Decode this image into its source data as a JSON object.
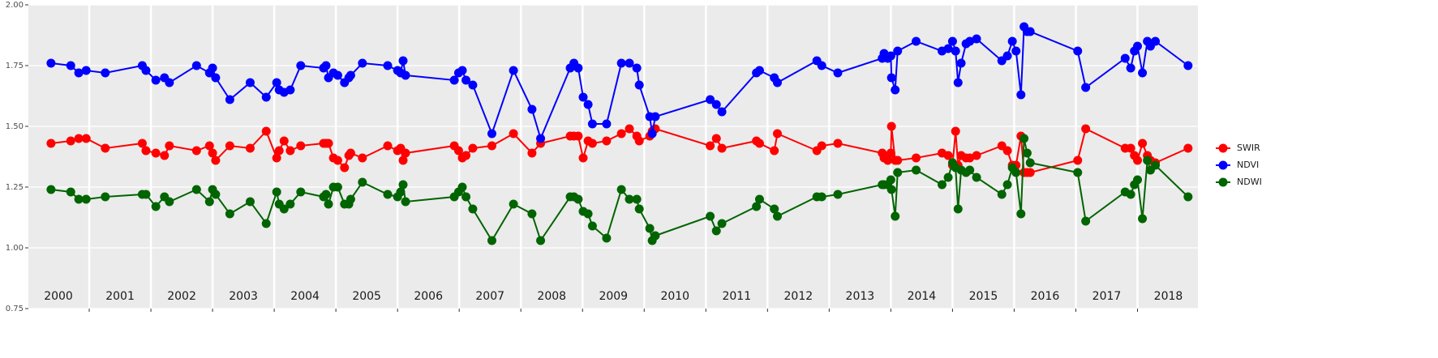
{
  "chart_data": {
    "type": "line",
    "x": [
      2000.38,
      2000.7,
      2000.83,
      2000.95,
      2001.26,
      2001.86,
      2001.92,
      2002.08,
      2002.22,
      2002.3,
      2002.74,
      2002.95,
      2003.0,
      2003.05,
      2003.28,
      2003.61,
      2003.87,
      2004.04,
      2004.08,
      2004.16,
      2004.26,
      2004.43,
      2004.8,
      2004.84,
      2004.88,
      2004.96,
      2005.03,
      2005.14,
      2005.21,
      2005.24,
      2005.43,
      2005.84,
      2006.0,
      2006.05,
      2006.09,
      2006.13,
      2006.92,
      2006.99,
      2007.05,
      2007.11,
      2007.22,
      2007.53,
      2007.88,
      2008.18,
      2008.32,
      2008.8,
      2008.86,
      2008.93,
      2009.01,
      2009.09,
      2009.16,
      2009.39,
      2009.63,
      2009.76,
      2009.88,
      2009.92,
      2010.09,
      2010.13,
      2010.18,
      2011.07,
      2011.17,
      2011.26,
      2011.82,
      2011.87,
      2012.11,
      2012.16,
      2012.8,
      2012.88,
      2013.14,
      2013.86,
      2013.89,
      2013.95,
      2014.0,
      2014.01,
      2014.07,
      2014.11,
      2014.41,
      2014.83,
      2014.93,
      2015.0,
      2015.05,
      2015.09,
      2015.14,
      2015.22,
      2015.28,
      2015.39,
      2015.8,
      2015.89,
      2015.97,
      2016.03,
      2016.11,
      2016.16,
      2016.21,
      2016.26,
      2017.03,
      2017.16,
      2017.8,
      2017.89,
      2017.95,
      2018.0,
      2018.08,
      2018.16,
      2018.21,
      2018.29,
      2018.82
    ],
    "series": [
      {
        "name": "SWIR",
        "color": "#ff0000",
        "values": [
          1.43,
          1.44,
          1.45,
          1.45,
          1.41,
          1.43,
          1.4,
          1.39,
          1.38,
          1.42,
          1.4,
          1.42,
          1.39,
          1.36,
          1.42,
          1.41,
          1.48,
          1.37,
          1.4,
          1.44,
          1.4,
          1.42,
          1.43,
          1.43,
          1.43,
          1.37,
          1.36,
          1.33,
          1.38,
          1.39,
          1.37,
          1.42,
          1.4,
          1.41,
          1.36,
          1.39,
          1.42,
          1.4,
          1.37,
          1.38,
          1.41,
          1.42,
          1.47,
          1.39,
          1.43,
          1.46,
          1.46,
          1.46,
          1.37,
          1.44,
          1.43,
          1.44,
          1.47,
          1.49,
          1.46,
          1.44,
          1.46,
          1.48,
          1.49,
          1.42,
          1.45,
          1.41,
          1.44,
          1.43,
          1.4,
          1.47,
          1.4,
          1.42,
          1.43,
          1.39,
          1.37,
          1.36,
          1.39,
          1.5,
          1.36,
          1.36,
          1.37,
          1.39,
          1.38,
          1.34,
          1.48,
          1.34,
          1.38,
          1.37,
          1.37,
          1.38,
          1.42,
          1.4,
          1.34,
          1.34,
          1.46,
          1.31,
          1.31,
          1.31,
          1.36,
          1.49,
          1.41,
          1.41,
          1.38,
          1.36,
          1.43,
          1.38,
          1.36,
          1.35,
          1.41
        ]
      },
      {
        "name": "NDVI",
        "color": "#0000ff",
        "values": [
          1.76,
          1.75,
          1.72,
          1.73,
          1.72,
          1.75,
          1.73,
          1.69,
          1.7,
          1.68,
          1.75,
          1.72,
          1.74,
          1.7,
          1.61,
          1.68,
          1.62,
          1.68,
          1.65,
          1.64,
          1.65,
          1.75,
          1.74,
          1.75,
          1.7,
          1.72,
          1.71,
          1.68,
          1.7,
          1.71,
          1.76,
          1.75,
          1.73,
          1.72,
          1.77,
          1.71,
          1.69,
          1.72,
          1.73,
          1.69,
          1.67,
          1.47,
          1.73,
          1.57,
          1.45,
          1.74,
          1.76,
          1.74,
          1.62,
          1.59,
          1.51,
          1.51,
          1.76,
          1.76,
          1.74,
          1.67,
          1.54,
          1.47,
          1.54,
          1.61,
          1.59,
          1.56,
          1.72,
          1.73,
          1.7,
          1.68,
          1.77,
          1.75,
          1.72,
          1.78,
          1.8,
          1.78,
          1.79,
          1.7,
          1.65,
          1.81,
          1.85,
          1.81,
          1.82,
          1.85,
          1.81,
          1.68,
          1.76,
          1.84,
          1.85,
          1.86,
          1.77,
          1.79,
          1.85,
          1.81,
          1.63,
          1.91,
          1.89,
          1.89,
          1.81,
          1.66,
          1.78,
          1.74,
          1.81,
          1.83,
          1.72,
          1.85,
          1.83,
          1.85,
          1.75
        ]
      },
      {
        "name": "NDWI",
        "color": "#006400",
        "values": [
          1.24,
          1.23,
          1.2,
          1.2,
          1.21,
          1.22,
          1.22,
          1.17,
          1.21,
          1.19,
          1.24,
          1.19,
          1.24,
          1.22,
          1.14,
          1.19,
          1.1,
          1.23,
          1.18,
          1.16,
          1.18,
          1.23,
          1.21,
          1.22,
          1.18,
          1.25,
          1.25,
          1.18,
          1.18,
          1.2,
          1.27,
          1.22,
          1.21,
          1.23,
          1.26,
          1.19,
          1.21,
          1.23,
          1.25,
          1.21,
          1.16,
          1.03,
          1.18,
          1.14,
          1.03,
          1.21,
          1.21,
          1.2,
          1.15,
          1.14,
          1.09,
          1.04,
          1.24,
          1.2,
          1.2,
          1.16,
          1.08,
          1.03,
          1.05,
          1.13,
          1.07,
          1.1,
          1.17,
          1.2,
          1.16,
          1.13,
          1.21,
          1.21,
          1.22,
          1.26,
          1.26,
          1.26,
          1.28,
          1.24,
          1.13,
          1.31,
          1.32,
          1.26,
          1.29,
          1.35,
          1.33,
          1.16,
          1.32,
          1.31,
          1.32,
          1.29,
          1.22,
          1.26,
          1.33,
          1.31,
          1.14,
          1.45,
          1.39,
          1.35,
          1.31,
          1.11,
          1.23,
          1.22,
          1.26,
          1.28,
          1.12,
          1.36,
          1.32,
          1.34,
          1.21
        ]
      }
    ],
    "xlim": [
      2000,
      2018.98
    ],
    "ylim": [
      0.75,
      2
    ],
    "yticks": [
      {
        "value": 0.75,
        "label": "0.75"
      },
      {
        "value": 1,
        "label": "1.00"
      },
      {
        "value": 1.25,
        "label": "1.25"
      },
      {
        "value": 1.5,
        "label": "1.50"
      },
      {
        "value": 1.75,
        "label": "1.75"
      },
      {
        "value": 2,
        "label": "2.00"
      }
    ],
    "xticks": [
      {
        "value": 2000.5,
        "label": "2000"
      },
      {
        "value": 2001.5,
        "label": "2001"
      },
      {
        "value": 2002.5,
        "label": "2002"
      },
      {
        "value": 2003.5,
        "label": "2003"
      },
      {
        "value": 2004.5,
        "label": "2004"
      },
      {
        "value": 2005.5,
        "label": "2005"
      },
      {
        "value": 2006.5,
        "label": "2006"
      },
      {
        "value": 2007.5,
        "label": "2007"
      },
      {
        "value": 2008.5,
        "label": "2008"
      },
      {
        "value": 2009.5,
        "label": "2009"
      },
      {
        "value": 2010.5,
        "label": "2010"
      },
      {
        "value": 2011.5,
        "label": "2011"
      },
      {
        "value": 2012.5,
        "label": "2012"
      },
      {
        "value": 2013.5,
        "label": "2013"
      },
      {
        "value": 2014.5,
        "label": "2014"
      },
      {
        "value": 2015.5,
        "label": "2015"
      },
      {
        "value": 2016.5,
        "label": "2016"
      },
      {
        "value": 2017.5,
        "label": "2017"
      },
      {
        "value": 2018.5,
        "label": "2018"
      }
    ],
    "x_separators": [
      2001,
      2002,
      2003,
      2004,
      2005,
      2006,
      2007,
      2008,
      2009,
      2010,
      2011,
      2012,
      2013,
      2014,
      2015,
      2016,
      2017,
      2018
    ],
    "grid": true,
    "legend": "right"
  }
}
